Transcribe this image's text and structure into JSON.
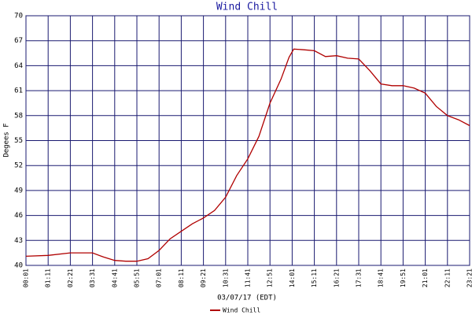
{
  "chart_data": {
    "type": "line",
    "title": "Wind Chill",
    "x_label": "03/07/17 (EDT)",
    "y_label": "Degees F",
    "x": [
      "00:01",
      "01:11",
      "02:21",
      "03:31",
      "04:06",
      "04:41",
      "05:16",
      "05:51",
      "06:26",
      "07:01",
      "07:36",
      "08:11",
      "08:46",
      "09:21",
      "09:56",
      "10:31",
      "11:06",
      "11:41",
      "12:16",
      "12:51",
      "13:26",
      "13:51",
      "14:06",
      "14:41",
      "15:11",
      "15:46",
      "16:21",
      "16:56",
      "17:31",
      "18:06",
      "18:41",
      "19:16",
      "19:51",
      "20:26",
      "21:01",
      "21:36",
      "22:11",
      "22:46",
      "23:21"
    ],
    "series": [
      {
        "name": "Wind Chill",
        "color": "#b00000",
        "values": [
          41.1,
          41.2,
          41.5,
          41.5,
          41.0,
          40.6,
          40.5,
          40.5,
          40.8,
          41.8,
          43.2,
          44.1,
          45.0,
          45.7,
          46.6,
          48.2,
          50.8,
          52.8,
          55.5,
          59.5,
          62.4,
          65.0,
          66.0,
          65.9,
          65.8,
          65.1,
          65.2,
          64.9,
          64.8,
          63.4,
          61.8,
          61.6,
          61.6,
          61.3,
          60.7,
          59.1,
          58.0,
          57.5,
          56.8
        ]
      }
    ],
    "xlim": [
      "00:01",
      "23:21"
    ],
    "xticks": [
      "00:01",
      "01:11",
      "02:21",
      "03:31",
      "04:41",
      "05:51",
      "07:01",
      "08:11",
      "09:21",
      "10:31",
      "11:41",
      "12:51",
      "14:01",
      "15:11",
      "16:21",
      "17:31",
      "18:41",
      "19:51",
      "21:01",
      "22:11",
      "23:21"
    ],
    "ylim": [
      40,
      70
    ],
    "yticks": [
      40,
      43,
      46,
      49,
      52,
      55,
      58,
      61,
      64,
      67,
      70
    ],
    "grid": true,
    "grid_color": "#1a1a70"
  }
}
